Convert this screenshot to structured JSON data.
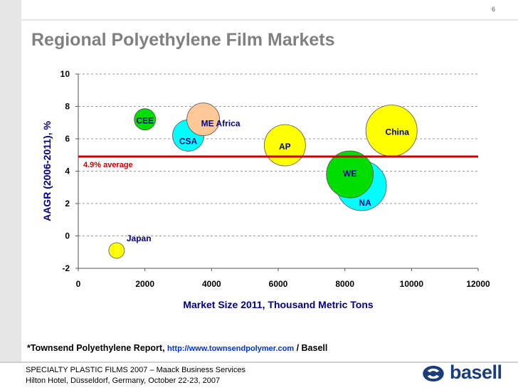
{
  "slide": {
    "page_number": "6",
    "title": "Regional Polyethylene Film Markets"
  },
  "chart_data": {
    "type": "scatter",
    "title": "",
    "xlabel": "Market Size 2011, Thousand Metric Tons",
    "ylabel": "AAGR (2006-2011), %",
    "xlim": [
      0,
      12000
    ],
    "ylim": [
      -2,
      10
    ],
    "x_ticks": [
      0,
      2000,
      4000,
      6000,
      8000,
      10000,
      12000
    ],
    "y_ticks": [
      -2,
      0,
      2,
      4,
      6,
      8,
      10
    ],
    "grid": "horizontal dashed",
    "average_line": {
      "value": 4.9,
      "label": "4.9% average",
      "color": "#cc0000"
    },
    "points": [
      {
        "label": "Japan",
        "x": 1150,
        "y": -0.9,
        "color": "#ffff00"
      },
      {
        "label": "CEE",
        "x": 2000,
        "y": 7.2,
        "color": "#00dd00"
      },
      {
        "label": "CSA",
        "x": 3300,
        "y": 6.2,
        "color": "#00ffff"
      },
      {
        "label": "ME Africa",
        "x": 3750,
        "y": 7.2,
        "color": "#ffc896"
      },
      {
        "label": "AP",
        "x": 6200,
        "y": 5.6,
        "color": "#ffff00"
      },
      {
        "label": "NA",
        "x": 8500,
        "y": 3.1,
        "color": "#00ffff"
      },
      {
        "label": "WE",
        "x": 8150,
        "y": 3.8,
        "color": "#00dd00"
      },
      {
        "label": "China",
        "x": 9400,
        "y": 6.5,
        "color": "#ffff00"
      }
    ]
  },
  "footnote": {
    "prefix": "*Townsend Polyethylene Report,",
    "url": "http://www.townsendpolymer.com",
    "suffix": "/ Basell"
  },
  "footer": {
    "line1": "SPECIALTY PLASTIC FILMS 2007 – Maack Business Services",
    "line2": "Hilton Hotel, Düsseldorf, Germany, October 22-23, 2007",
    "logo_text": "basell"
  }
}
